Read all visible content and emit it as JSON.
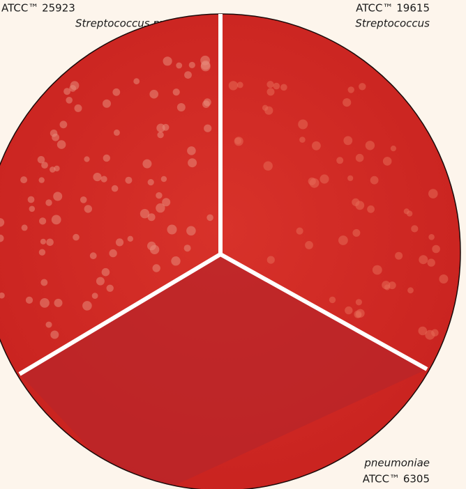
{
  "labels": {
    "top_left": {
      "strain": "ATCC™ 25923",
      "species": "Streptococcus py"
    },
    "top_right": {
      "strain": "ATCC™ 19615",
      "species": "Streptococcus"
    },
    "bottom_right": {
      "species": "pneumoniae",
      "strain": "ATCC™ 6305"
    }
  }
}
